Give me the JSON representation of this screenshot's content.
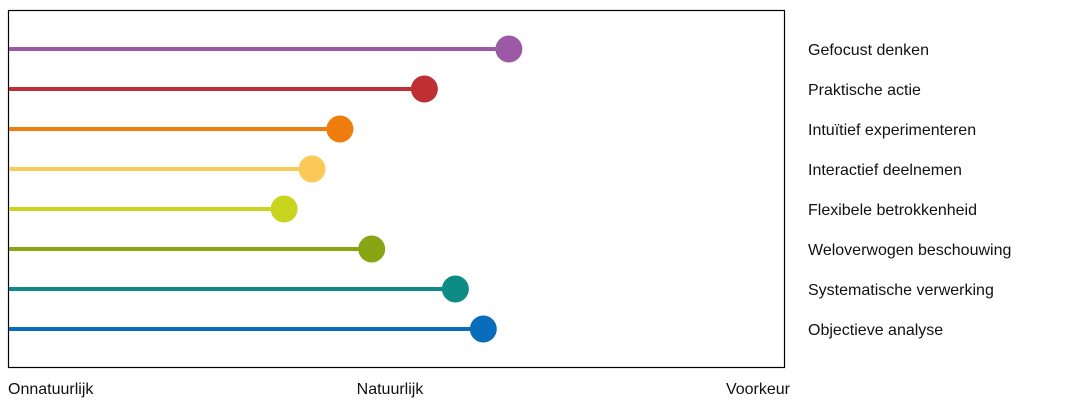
{
  "chart_data": {
    "type": "lollipop",
    "orientation": "horizontal",
    "axis_labels": {
      "left": "Onnatuurlijk",
      "middle": "Natuurlijk",
      "right": "Voorkeur"
    },
    "xlim": [
      0,
      100
    ],
    "grid": false,
    "legend_position": "right",
    "series": [
      {
        "name": "Gefocust denken",
        "value": 64.5,
        "color": "#9b59a6"
      },
      {
        "name": "Praktische actie",
        "value": 53.6,
        "color": "#bf3034"
      },
      {
        "name": "Intuïtief experimenteren",
        "value": 42.7,
        "color": "#ee7d0e"
      },
      {
        "name": "Interactief deelnemen",
        "value": 39.1,
        "color": "#fbc957"
      },
      {
        "name": "Flexibele betrokkenheid",
        "value": 35.5,
        "color": "#c9d41f"
      },
      {
        "name": "Weloverwogen beschouwing",
        "value": 46.8,
        "color": "#89a514"
      },
      {
        "name": "Systematische verwerking",
        "value": 57.6,
        "color": "#0f8b85"
      },
      {
        "name": "Objectieve analyse",
        "value": 61.2,
        "color": "#0a6dbb"
      }
    ]
  }
}
